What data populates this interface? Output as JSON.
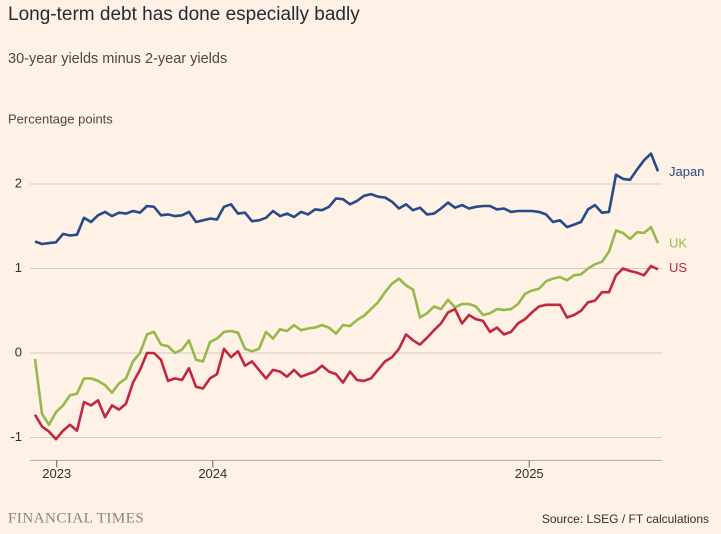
{
  "chart_data": {
    "type": "line",
    "title": "Long-term debt has done especially badly",
    "subtitle": "30-year yields minus 2-year yields",
    "y_label": "Percentage points",
    "source": "Source: LSEG / FT calculations",
    "brand": "FINANCIAL TIMES",
    "x": [
      0,
      1,
      2,
      3,
      4,
      5,
      6,
      7,
      8,
      9,
      10,
      11,
      12,
      13,
      14,
      15,
      16,
      17,
      18,
      19,
      20,
      21,
      22,
      23,
      24,
      25,
      26,
      27,
      28,
      29,
      30,
      31,
      32,
      33,
      34,
      35,
      36,
      37,
      38,
      39,
      40,
      41,
      42,
      43,
      44,
      45,
      46,
      47,
      48,
      49,
      50,
      51,
      52,
      53,
      54,
      55,
      56,
      57,
      58,
      59,
      60,
      61,
      62,
      63,
      64,
      65,
      66,
      67,
      68,
      69,
      70,
      71,
      72,
      73,
      74,
      75,
      76,
      77,
      78,
      79,
      80,
      81,
      82,
      83,
      84,
      85,
      86,
      87,
      88,
      89
    ],
    "xlim": [
      0,
      89
    ],
    "xticks": [
      {
        "value": 3.1,
        "label": "2023"
      },
      {
        "value": 25.4,
        "label": "2024"
      },
      {
        "value": 70.6,
        "label": "2025"
      }
    ],
    "ylim": [
      -1.27,
      2.6
    ],
    "yticks": [
      -1,
      0,
      1,
      2
    ],
    "grid": true,
    "series": [
      {
        "name": "Japan",
        "color": "#264a8a",
        "values": [
          1.32,
          1.29,
          1.3,
          1.31,
          1.41,
          1.39,
          1.4,
          1.6,
          1.55,
          1.63,
          1.67,
          1.62,
          1.66,
          1.65,
          1.68,
          1.66,
          1.74,
          1.73,
          1.63,
          1.64,
          1.62,
          1.63,
          1.67,
          1.55,
          1.57,
          1.59,
          1.58,
          1.73,
          1.76,
          1.65,
          1.66,
          1.56,
          1.57,
          1.6,
          1.68,
          1.62,
          1.65,
          1.61,
          1.67,
          1.64,
          1.7,
          1.69,
          1.73,
          1.83,
          1.82,
          1.76,
          1.8,
          1.86,
          1.88,
          1.85,
          1.84,
          1.79,
          1.71,
          1.76,
          1.69,
          1.72,
          1.64,
          1.65,
          1.71,
          1.78,
          1.72,
          1.75,
          1.71,
          1.73,
          1.74,
          1.74,
          1.7,
          1.71,
          1.67,
          1.68,
          1.68,
          1.68,
          1.67,
          1.64,
          1.55,
          1.57,
          1.49,
          1.52,
          1.55,
          1.7,
          1.75,
          1.66,
          1.67,
          2.11,
          2.06,
          2.05,
          2.17,
          2.28,
          2.36,
          2.15
        ]
      },
      {
        "name": "UK",
        "color": "#96b94b",
        "values": [
          -0.07,
          -0.72,
          -0.85,
          -0.7,
          -0.62,
          -0.5,
          -0.48,
          -0.3,
          -0.3,
          -0.33,
          -0.38,
          -0.47,
          -0.36,
          -0.3,
          -0.1,
          0.0,
          0.22,
          0.25,
          0.1,
          0.08,
          0.0,
          0.04,
          0.15,
          -0.08,
          -0.1,
          0.13,
          0.17,
          0.25,
          0.26,
          0.24,
          0.05,
          0.02,
          0.05,
          0.25,
          0.17,
          0.28,
          0.26,
          0.33,
          0.27,
          0.29,
          0.3,
          0.33,
          0.3,
          0.23,
          0.33,
          0.32,
          0.39,
          0.44,
          0.52,
          0.6,
          0.72,
          0.82,
          0.88,
          0.8,
          0.75,
          0.42,
          0.47,
          0.55,
          0.52,
          0.63,
          0.54,
          0.58,
          0.58,
          0.55,
          0.45,
          0.47,
          0.52,
          0.51,
          0.52,
          0.58,
          0.7,
          0.74,
          0.76,
          0.85,
          0.88,
          0.9,
          0.86,
          0.92,
          0.93,
          1.0,
          1.05,
          1.08,
          1.2,
          1.45,
          1.42,
          1.35,
          1.43,
          1.42,
          1.49,
          1.3
        ]
      },
      {
        "name": "US",
        "color": "#c1283e",
        "values": [
          -0.73,
          -0.87,
          -0.93,
          -1.02,
          -0.92,
          -0.85,
          -0.92,
          -0.58,
          -0.62,
          -0.56,
          -0.76,
          -0.62,
          -0.67,
          -0.6,
          -0.35,
          -0.2,
          0.0,
          0.0,
          -0.08,
          -0.33,
          -0.3,
          -0.32,
          -0.18,
          -0.4,
          -0.42,
          -0.3,
          -0.25,
          0.05,
          -0.05,
          0.02,
          -0.15,
          -0.1,
          -0.2,
          -0.3,
          -0.2,
          -0.22,
          -0.28,
          -0.2,
          -0.28,
          -0.25,
          -0.22,
          -0.15,
          -0.22,
          -0.25,
          -0.35,
          -0.22,
          -0.32,
          -0.33,
          -0.3,
          -0.2,
          -0.1,
          -0.05,
          0.05,
          0.22,
          0.15,
          0.1,
          0.18,
          0.27,
          0.35,
          0.48,
          0.52,
          0.35,
          0.45,
          0.4,
          0.38,
          0.25,
          0.3,
          0.22,
          0.25,
          0.35,
          0.4,
          0.48,
          0.55,
          0.57,
          0.57,
          0.57,
          0.42,
          0.45,
          0.5,
          0.6,
          0.62,
          0.72,
          0.72,
          0.92,
          1.0,
          0.97,
          0.95,
          0.92,
          1.03,
          0.99
        ]
      }
    ]
  }
}
